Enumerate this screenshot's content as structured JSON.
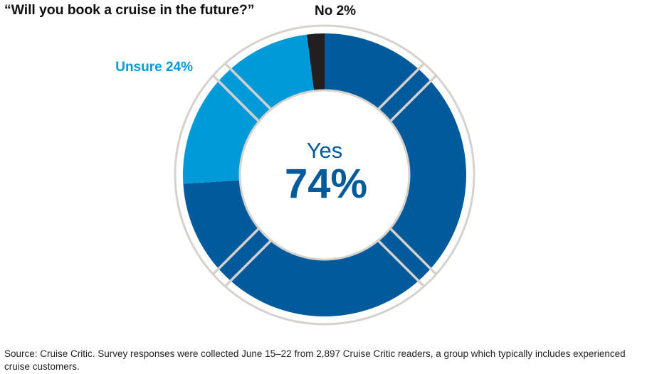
{
  "title": "“Will you book a cruise in the future?”",
  "chart_data": {
    "type": "pie",
    "categories": [
      "Yes",
      "Unsure",
      "No"
    ],
    "values": [
      74,
      24,
      2
    ],
    "colors": [
      "#005a9c",
      "#009ad9",
      "#231f20"
    ],
    "labels": {
      "yes_word": "Yes",
      "yes_value": "74%",
      "unsure": "Unsure 24%",
      "no": "No 2%"
    }
  },
  "source": "Source: Cruise Critic. Survey responses were collected June 15–22 from 2,897 Cruise Critic readers, a group which typically includes experienced cruise customers."
}
